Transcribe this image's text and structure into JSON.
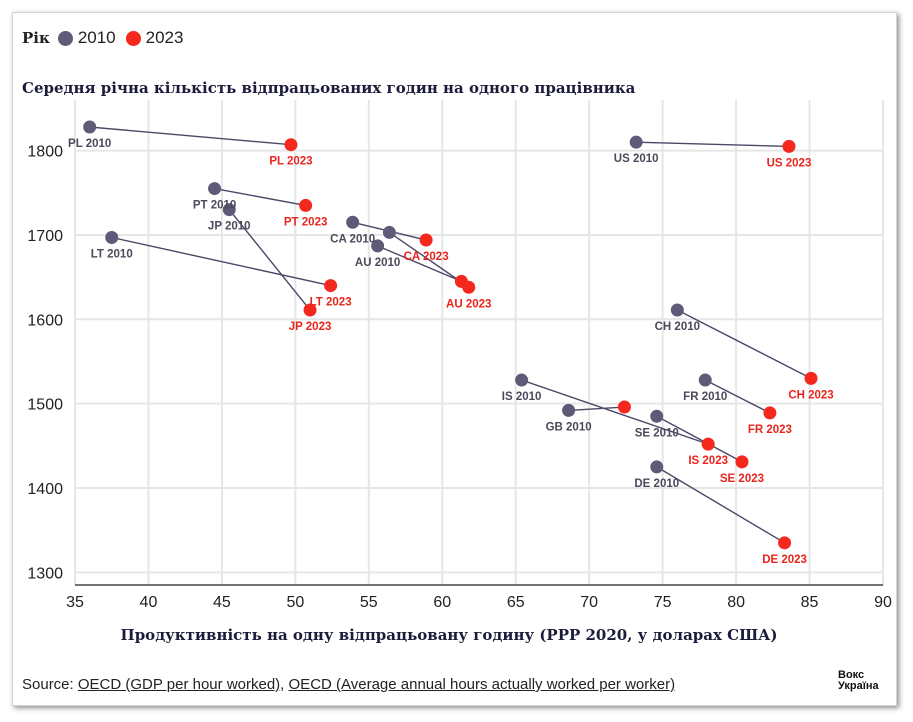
{
  "legend": {
    "title": "Рік",
    "items": [
      {
        "label": "2010",
        "color": "#5d5b78"
      },
      {
        "label": "2023",
        "color": "#f5281e"
      }
    ]
  },
  "chart_data": {
    "type": "scatter",
    "title": "Середня річна кількість відпрацьованих годин на одного працівника",
    "xlabel": "Продуктивність на одну відпрацьовану годину (PPP 2020, у доларах США)",
    "ylabel": "",
    "xlim": [
      35,
      90
    ],
    "ylim": [
      1285,
      1860
    ],
    "x_ticks": [
      35,
      40,
      45,
      50,
      55,
      60,
      65,
      70,
      75,
      80,
      85,
      90
    ],
    "y_ticks": [
      1300,
      1400,
      1500,
      1600,
      1700,
      1800
    ],
    "grid": true,
    "colors": {
      "2010": "#5d5b78",
      "2023": "#f5281e",
      "line": "#4a4866",
      "label_2010": "#4a4a5a",
      "label_2023": "#e8251c"
    },
    "points": [
      {
        "country": "PL",
        "x2010": 36.0,
        "y2010": 1828,
        "label2010": "PL 2010",
        "x2023": 49.7,
        "y2023": 1807,
        "label2023": "PL 2023"
      },
      {
        "country": "US",
        "x2010": 73.2,
        "y2010": 1810,
        "label2010": "US 2010",
        "x2023": 83.6,
        "y2023": 1805,
        "label2023": "US 2023"
      },
      {
        "country": "PT",
        "x2010": 44.5,
        "y2010": 1755,
        "label2010": "PT 2010",
        "x2023": 50.7,
        "y2023": 1735,
        "label2023": "PT 2023"
      },
      {
        "country": "JP",
        "x2010": 45.5,
        "y2010": 1730,
        "label2010": "JP 2010",
        "x2023": 51.0,
        "y2023": 1611,
        "label2023": "JP 2023"
      },
      {
        "country": "LT",
        "x2010": 37.5,
        "y2010": 1697,
        "label2010": "LT 2010",
        "x2023": 52.4,
        "y2023": 1640,
        "label2023": "LT 2023"
      },
      {
        "country": "CA",
        "x2010": 53.9,
        "y2010": 1715,
        "label2010": "CA 2010",
        "x2023": 58.9,
        "y2023": 1694,
        "label2023": "CA 2023"
      },
      {
        "country": "AU",
        "x2010": 56.4,
        "y2010": 1703,
        "label2010": "",
        "x2023": 61.8,
        "y2023": 1638,
        "label2023": "AU 2023"
      },
      {
        "country": "AU2",
        "x2010": 55.6,
        "y2010": 1687,
        "label2010": "AU 2010",
        "x2023": 61.3,
        "y2023": 1645,
        "label2023": ""
      },
      {
        "country": "CH",
        "x2010": 76.0,
        "y2010": 1611,
        "label2010": "CH 2010",
        "x2023": 85.1,
        "y2023": 1530,
        "label2023": "CH 2023"
      },
      {
        "country": "FR",
        "x2010": 77.9,
        "y2010": 1528,
        "label2010": "FR 2010",
        "x2023": 82.3,
        "y2023": 1489,
        "label2023": "FR 2023"
      },
      {
        "country": "IS",
        "x2010": 65.4,
        "y2010": 1528,
        "label2010": "IS 2010",
        "x2023": 78.1,
        "y2023": 1452,
        "label2023": "IS 2023"
      },
      {
        "country": "GB",
        "x2010": 68.6,
        "y2010": 1492,
        "label2010": "GB 2010",
        "x2023": 72.4,
        "y2023": 1496,
        "label2023": ""
      },
      {
        "country": "SE",
        "x2010": 74.6,
        "y2010": 1485,
        "label2010": "SE 2010",
        "x2023": 80.4,
        "y2023": 1431,
        "label2023": "SE 2023"
      },
      {
        "country": "DE",
        "x2010": 74.6,
        "y2010": 1425,
        "label2010": "DE 2010",
        "x2023": 83.3,
        "y2023": 1335,
        "label2023": "DE 2023"
      }
    ]
  },
  "source": {
    "prefix": "Source: ",
    "link1": "OECD (GDP per hour worked)",
    "separator": ", ",
    "link2": "OECD (Average annual hours actually worked per worker)"
  },
  "logo": {
    "line1": "Вокс",
    "line2": "Україна"
  }
}
